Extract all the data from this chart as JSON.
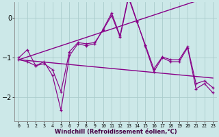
{
  "xlabel": "Windchill (Refroidissement éolien,°C)",
  "x": [
    0,
    1,
    2,
    3,
    4,
    5,
    6,
    7,
    8,
    9,
    10,
    11,
    12,
    13,
    14,
    15,
    16,
    17,
    18,
    19,
    20,
    21,
    22,
    23
  ],
  "line_main": [
    -1.0,
    -0.8,
    -1.2,
    -1.1,
    -1.45,
    -2.32,
    -0.95,
    -0.65,
    -0.7,
    -0.65,
    -0.28,
    0.12,
    -0.45,
    0.55,
    -0.08,
    -0.72,
    -1.35,
    -1.0,
    -1.1,
    -1.1,
    -0.75,
    -1.78,
    -1.65,
    -1.88
  ],
  "line_avg": [
    -1.05,
    -1.1,
    -1.2,
    -1.15,
    -1.3,
    -1.85,
    -0.85,
    -0.62,
    -0.65,
    -0.62,
    -0.3,
    0.06,
    -0.48,
    0.5,
    -0.1,
    -0.68,
    -1.28,
    -0.98,
    -1.05,
    -1.05,
    -0.72,
    -1.65,
    -1.58,
    -1.75
  ],
  "trend_rising": [
    -1.05,
    -0.98,
    -0.91,
    -0.84,
    -0.77,
    -0.7,
    -0.63,
    -0.56,
    -0.49,
    -0.42,
    -0.35,
    -0.28,
    -0.21,
    -0.14,
    -0.07,
    0.0,
    0.07,
    0.14,
    0.21,
    0.28,
    0.35,
    0.42,
    0.49,
    0.56
  ],
  "trend_falling": [
    -1.05,
    -1.07,
    -1.09,
    -1.11,
    -1.13,
    -1.15,
    -1.17,
    -1.19,
    -1.21,
    -1.23,
    -1.25,
    -1.27,
    -1.29,
    -1.31,
    -1.33,
    -1.35,
    -1.37,
    -1.39,
    -1.41,
    -1.43,
    -1.45,
    -1.47,
    -1.49,
    -1.51
  ],
  "line_color": "#880088",
  "bg_color": "#cce8e8",
  "grid_color": "#aacccc",
  "ylim": [
    -2.6,
    0.4
  ],
  "yticks": [
    0,
    -1,
    -2
  ],
  "xlim": [
    -0.5,
    23.5
  ]
}
